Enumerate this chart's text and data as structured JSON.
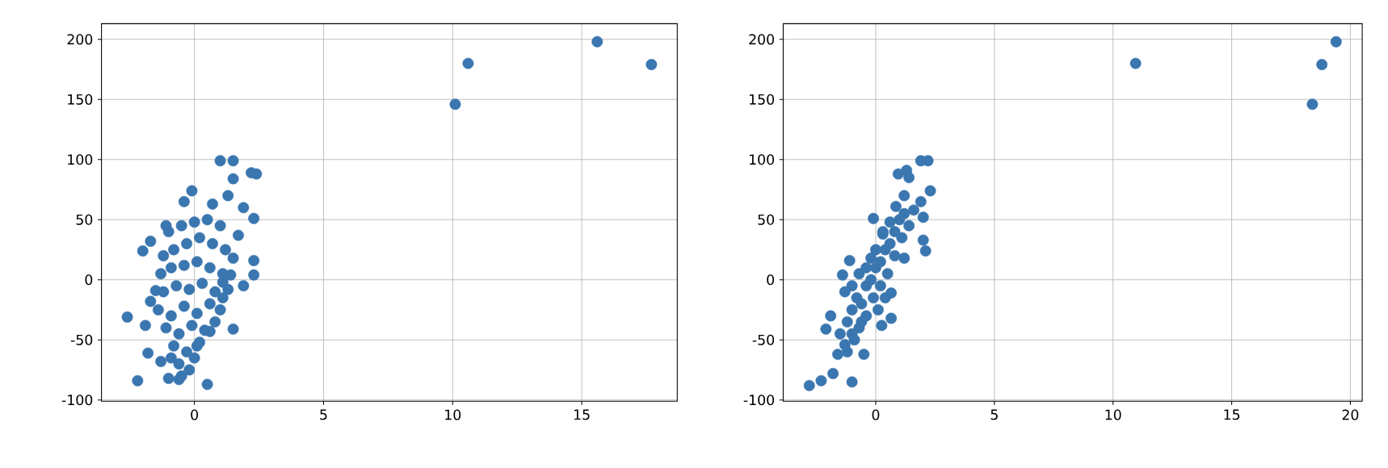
{
  "chart_data": [
    {
      "type": "scatter",
      "color": "#3a76af",
      "marker": "circle",
      "grid": true,
      "xlim": [
        -3.6,
        18.7
      ],
      "ylim": [
        -101,
        213
      ],
      "xticks": [
        0,
        5,
        10,
        15
      ],
      "yticks": [
        -100,
        -50,
        0,
        50,
        100,
        150,
        200
      ],
      "x": [
        10.1,
        10.6,
        15.6,
        17.7,
        1.0,
        1.5,
        1.5,
        2.2,
        2.4,
        -0.1,
        -0.4,
        0.7,
        1.3,
        1.9,
        2.3,
        1.7,
        1.5,
        2.3,
        2.3,
        1.9,
        1.5,
        0.5,
        -2.2,
        -2.6,
        -2.0,
        -1.7,
        -1.8,
        -1.9,
        -1.3,
        -1.1,
        -1.5,
        -1.7,
        -1.0,
        -0.6,
        0.1,
        0.6,
        1.1,
        1.1,
        1.4,
        -1.0,
        -0.5,
        0.0,
        0.5,
        1.0,
        -1.2,
        -0.8,
        -0.3,
        0.2,
        0.7,
        1.2,
        -1.3,
        -0.9,
        -0.4,
        0.1,
        0.6,
        1.1,
        -1.2,
        -0.7,
        -0.2,
        0.3,
        0.8,
        1.3,
        -1.4,
        -0.9,
        -0.4,
        0.1,
        0.6,
        1.0,
        -1.1,
        -0.6,
        -0.1,
        0.4,
        0.8,
        -0.8,
        -0.3,
        0.2,
        -0.6,
        -0.2,
        -0.9,
        0.0,
        -0.5
      ],
      "values": [
        146,
        180,
        198,
        179,
        99,
        99,
        84,
        89,
        88,
        74,
        65,
        63,
        70,
        60,
        51,
        37,
        18,
        16,
        4,
        -5,
        -41,
        -87,
        -84,
        -31,
        24,
        32,
        -61,
        -38,
        -68,
        45,
        -9,
        -18,
        -82,
        -83,
        -55,
        -43,
        -15,
        -2,
        4,
        40,
        45,
        48,
        50,
        45,
        20,
        25,
        30,
        35,
        30,
        25,
        5,
        10,
        12,
        15,
        10,
        5,
        -10,
        -5,
        -8,
        -3,
        -10,
        -8,
        -25,
        -30,
        -22,
        -28,
        -20,
        -25,
        -40,
        -45,
        -38,
        -42,
        -35,
        -55,
        -60,
        -52,
        -70,
        -75,
        -65,
        -65,
        -80
      ]
    },
    {
      "type": "scatter",
      "color": "#3a76af",
      "marker": "circle",
      "grid": true,
      "xlim": [
        -3.9,
        20.5
      ],
      "ylim": [
        -101,
        213
      ],
      "xticks": [
        0,
        5,
        10,
        15,
        20
      ],
      "yticks": [
        -100,
        -50,
        0,
        50,
        100,
        150,
        200
      ],
      "x": [
        10.95,
        18.4,
        18.8,
        19.4,
        -2.8,
        -2.3,
        -1.0,
        -0.5,
        -2.1,
        -1.4,
        -1.1,
        -0.2,
        -0.1,
        0.25,
        0.65,
        1.9,
        2.2,
        0.95,
        1.4,
        1.3,
        2.3,
        1.9,
        1.2,
        2.1,
        2.0,
        2.0,
        1.2,
        0.65,
        -1.8,
        -1.6,
        -1.3,
        -1.9,
        0.85,
        0.3,
        -1.5,
        -1.2,
        -1.0,
        -0.8,
        -0.6,
        -0.4,
        -0.2,
        0.0,
        0.2,
        0.4,
        0.6,
        0.8,
        1.0,
        -1.0,
        -0.7,
        -0.4,
        -0.1,
        0.2,
        0.5,
        0.8,
        1.1,
        1.4,
        -1.3,
        -1.0,
        -0.7,
        -0.4,
        0.0,
        0.3,
        0.6,
        -1.2,
        -0.9,
        -0.6,
        0.1,
        0.4,
        1.2,
        1.6
      ],
      "values": [
        180,
        146,
        179,
        198,
        -88,
        -84,
        -85,
        -62,
        -41,
        4,
        16,
        18,
        51,
        -38,
        -32,
        99,
        99,
        88,
        85,
        91,
        74,
        65,
        70,
        24,
        33,
        52,
        18,
        -11,
        -78,
        -62,
        -54,
        -30,
        61,
        40,
        -45,
        -35,
        -25,
        -15,
        -20,
        -5,
        0,
        10,
        15,
        25,
        30,
        40,
        50,
        -45,
        -40,
        -30,
        -15,
        -5,
        5,
        20,
        35,
        45,
        -10,
        -5,
        5,
        10,
        25,
        38,
        48,
        -60,
        -50,
        -35,
        -25,
        -15,
        55,
        58
      ]
    }
  ]
}
